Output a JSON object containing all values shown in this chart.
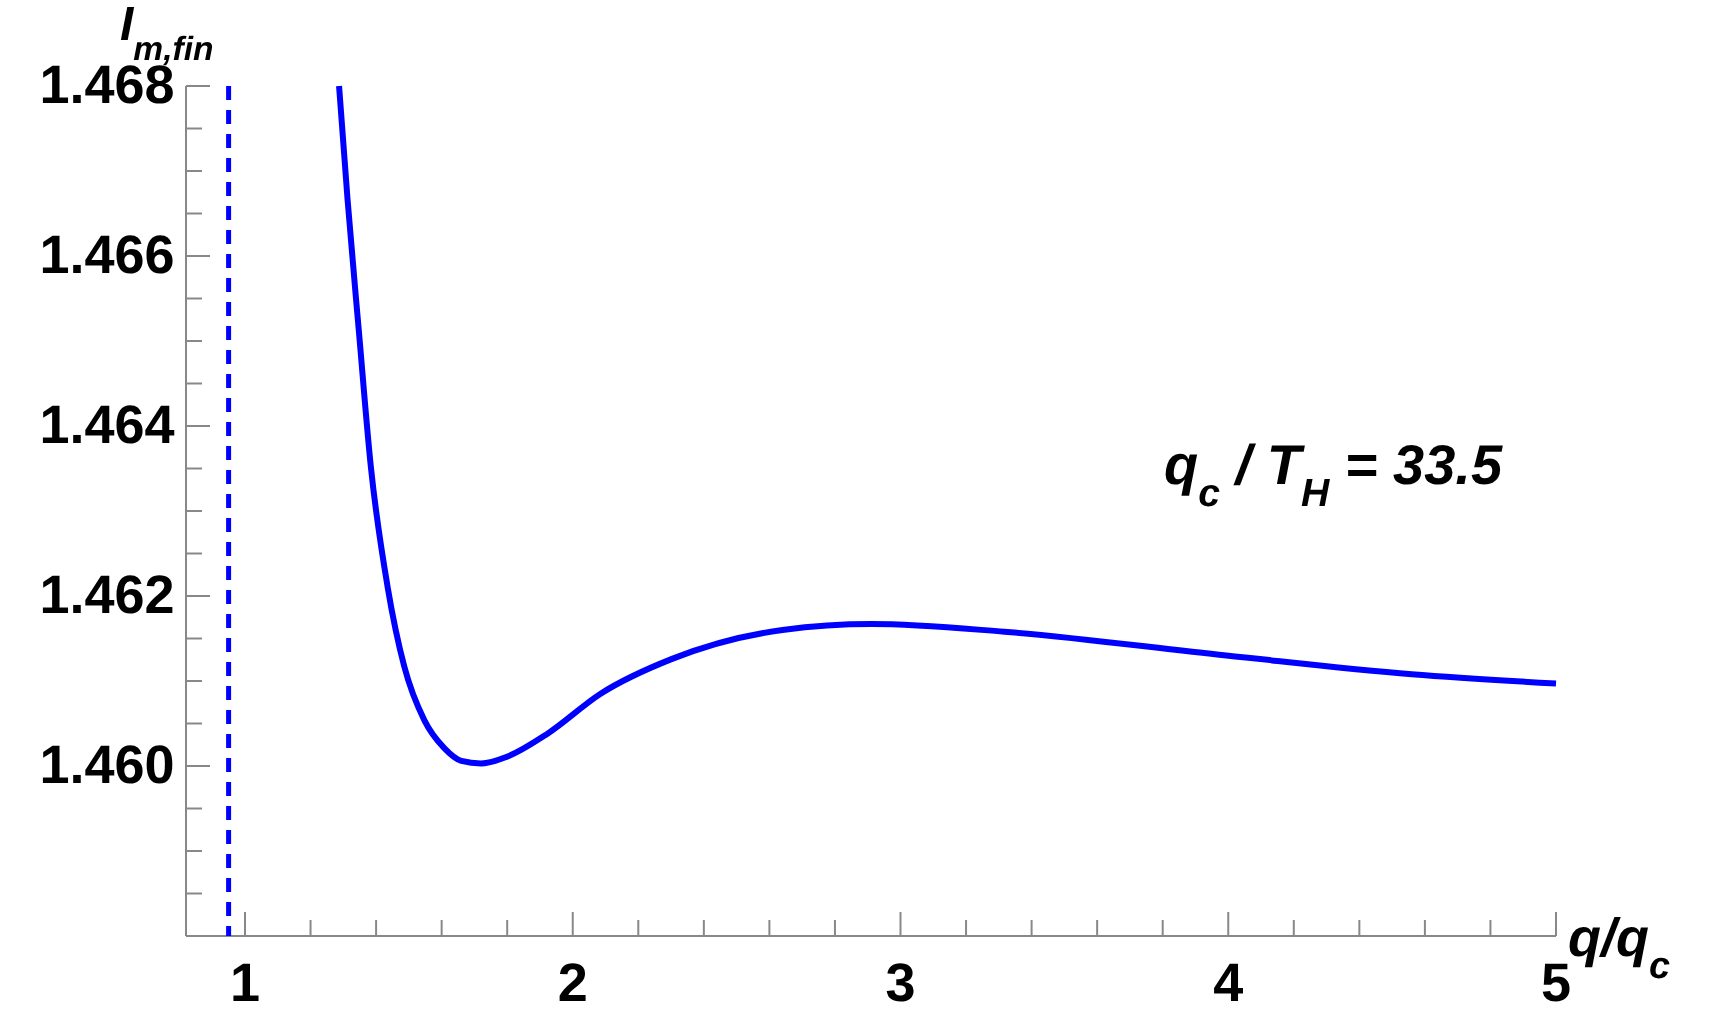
{
  "chart_data": {
    "type": "line",
    "xlabel": "q/q$_{c}$",
    "ylabel": "I$_{m,fin}$",
    "annotations": [
      "q$_{c}$ / T$_{H}$ = 33.5"
    ],
    "series": [
      {
        "color": "#0000ff",
        "x": [
          1.287,
          1.313,
          1.348,
          1.384,
          1.435,
          1.486,
          1.547,
          1.608,
          1.66,
          1.72,
          1.8,
          1.923,
          2.085,
          2.303,
          2.64,
          2.912,
          3.317,
          3.994,
          4.56,
          5.0
        ],
        "values": [
          1.468,
          1.46666,
          1.46509,
          1.46352,
          1.46211,
          1.46117,
          1.46054,
          1.46021,
          1.46006,
          1.46003,
          1.46011,
          1.46038,
          1.46085,
          1.46126,
          1.4616,
          1.46167,
          1.46158,
          1.4613,
          1.46108,
          1.46097
        ]
      }
    ],
    "xlim": [
      0.82,
      5
    ],
    "ylim": [
      1.458,
      1.468
    ],
    "xticks": [
      1,
      {
        "value": 1.2,
        "label": null
      },
      {
        "value": 1.4,
        "label": null
      },
      {
        "value": 1.6,
        "label": null
      },
      {
        "value": 1.8,
        "label": null
      },
      2,
      {
        "value": 2.2,
        "label": null
      },
      {
        "value": 2.4,
        "label": null
      },
      {
        "value": 2.6,
        "label": null
      },
      {
        "value": 2.8,
        "label": null
      },
      3,
      {
        "value": 3.2,
        "label": null
      },
      {
        "value": 3.4,
        "label": null
      },
      {
        "value": 3.6,
        "label": null
      },
      {
        "value": 3.8,
        "label": null
      },
      4,
      {
        "value": 4.2,
        "label": null
      },
      {
        "value": 4.4,
        "label": null
      },
      {
        "value": 4.6,
        "label": null
      },
      {
        "value": 4.8,
        "label": null
      },
      5
    ],
    "yticks": [
      {
        "value": 1.4585,
        "label": null
      },
      {
        "value": 1.459,
        "label": null
      },
      {
        "value": 1.4595,
        "label": null
      },
      {
        "value": 1.46,
        "label": "1.460"
      },
      {
        "value": 1.4605,
        "label": null
      },
      {
        "value": 1.461,
        "label": null
      },
      {
        "value": 1.4615,
        "label": null
      },
      {
        "value": 1.462,
        "label": "1.462"
      },
      {
        "value": 1.4625,
        "label": null
      },
      {
        "value": 1.463,
        "label": null
      },
      {
        "value": 1.4635,
        "label": null
      },
      {
        "value": 1.464,
        "label": "1.464"
      },
      {
        "value": 1.4645,
        "label": null
      },
      {
        "value": 1.465,
        "label": null
      },
      {
        "value": 1.4655,
        "label": null
      },
      {
        "value": 1.466,
        "label": "1.466"
      },
      {
        "value": 1.4665,
        "label": null
      },
      {
        "value": 1.467,
        "label": null
      },
      {
        "value": 1.4675,
        "label": null
      },
      {
        "value": 1.468,
        "label": "1.468"
      }
    ],
    "ref_lines": [
      {
        "axis": "x",
        "value": 0.95,
        "color": "#0000ff",
        "line_style": "dashed"
      }
    ],
    "grid": false
  }
}
